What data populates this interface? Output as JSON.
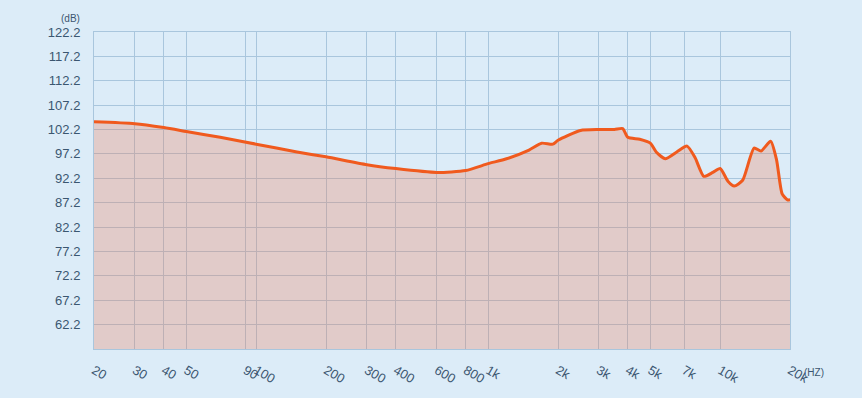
{
  "chart_data": {
    "type": "area",
    "x_label": "(HZ)",
    "y_label": "(dB)",
    "color": "#f05a1e",
    "log": "x",
    "grid": true,
    "x": [
      20,
      30,
      40,
      50,
      70,
      100,
      150,
      200,
      300,
      400,
      600,
      800,
      1000,
      1200,
      1500,
      1700,
      1900,
      2000,
      2500,
      3000,
      3500,
      3800,
      4000,
      4500,
      5000,
      5300,
      5800,
      6500,
      7200,
      7800,
      8500,
      9300,
      10000,
      10800,
      11500,
      12500,
      14000,
      15000,
      16500,
      17500,
      18500,
      19500,
      20000
    ],
    "values": [
      103.8,
      103.4,
      102.6,
      101.8,
      100.6,
      99.2,
      97.6,
      96.6,
      95.0,
      94.2,
      93.4,
      93.8,
      95.2,
      96.2,
      98.0,
      99.4,
      99.2,
      100.0,
      102.0,
      102.2,
      102.2,
      102.4,
      100.6,
      100.2,
      99.4,
      97.6,
      96.2,
      97.6,
      98.8,
      96.4,
      92.6,
      93.4,
      94.2,
      91.6,
      90.6,
      91.8,
      98.4,
      97.8,
      99.8,
      96.0,
      89.0,
      87.8,
      87.8
    ],
    "xlim": [
      20,
      20000
    ],
    "xticks": [
      20,
      30,
      40,
      50,
      90,
      100,
      200,
      300,
      400,
      600,
      800,
      {
        "value": 1000,
        "label": "1k"
      },
      {
        "value": 2000,
        "label": "2k"
      },
      {
        "value": 3000,
        "label": "3k"
      },
      {
        "value": 4000,
        "label": "4k"
      },
      {
        "value": 5000,
        "label": "5k"
      },
      {
        "value": 7000,
        "label": "7k"
      },
      {
        "value": 10000,
        "label": "10k"
      },
      {
        "value": 20000,
        "label": "20k"
      }
    ],
    "ylim": [
      57.2,
      122.2
    ],
    "yticks": [
      62.2,
      67.2,
      72.2,
      77.2,
      82.2,
      87.2,
      92.2,
      97.2,
      102.2,
      107.2,
      112.2,
      117.2,
      122.2
    ]
  }
}
